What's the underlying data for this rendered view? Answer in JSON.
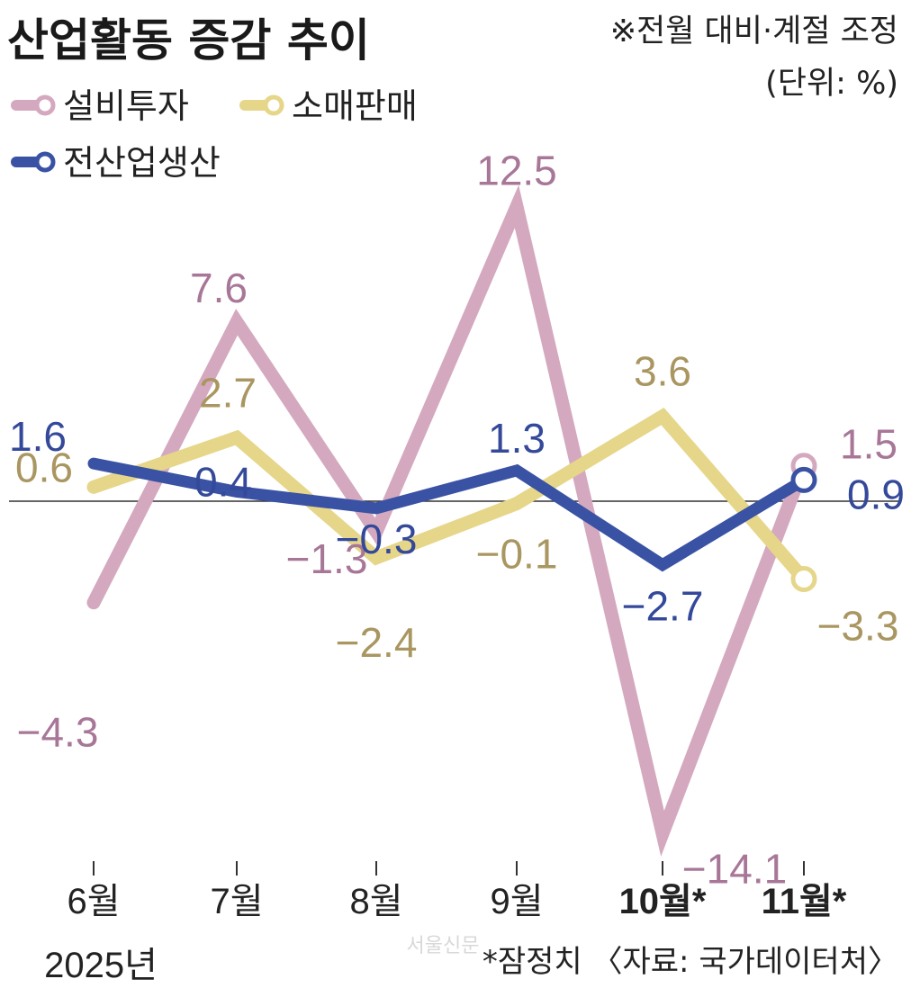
{
  "title": "산업활동 증감 추이",
  "note_line1": "※전월 대비·계절 조정",
  "note_line2": "(단위: %)",
  "year_label": "2025년",
  "footnote": "*잠정치 〈자료: 국가데이터처〉",
  "watermark": "서울신문",
  "colors": {
    "설비투자_line": "#d4a9bf",
    "설비투자_label": "#a87798",
    "소매판매_line": "#e6d68a",
    "소매판매_label": "#a99660",
    "전산업생산_line": "#3a52a3",
    "전산업생산_label": "#34499a"
  },
  "chart_data": {
    "type": "line",
    "categories": [
      "6월",
      "7월",
      "8월",
      "9월",
      "10월*",
      "11월*"
    ],
    "bold_categories": [
      "10월*",
      "11월*"
    ],
    "series": [
      {
        "name": "설비투자",
        "values": [
          -4.3,
          7.6,
          -1.3,
          12.5,
          -14.1,
          1.5
        ]
      },
      {
        "name": "소매판매",
        "values": [
          0.6,
          2.7,
          -2.4,
          -0.1,
          3.6,
          -3.3
        ]
      },
      {
        "name": "전산업생산",
        "values": [
          1.6,
          0.4,
          -0.3,
          1.3,
          -2.7,
          0.9
        ]
      }
    ],
    "value_labels": {
      "설비투자": [
        "−4.3",
        "7.6",
        "−1.3",
        "12.5",
        "−14.1",
        "1.5"
      ],
      "소매판매": [
        "0.6",
        "2.7",
        "−2.4",
        "−0.1",
        "3.6",
        "−3.3"
      ],
      "전산업생산": [
        "1.6",
        "0.4",
        "−0.3",
        "1.3",
        "−2.7",
        "0.9"
      ]
    },
    "legend": [
      "설비투자",
      "소매판매",
      "전산업생산"
    ],
    "legend_position": "top-left",
    "ylim": [
      -14.1,
      12.5
    ],
    "zero_line": true,
    "grid": false
  }
}
